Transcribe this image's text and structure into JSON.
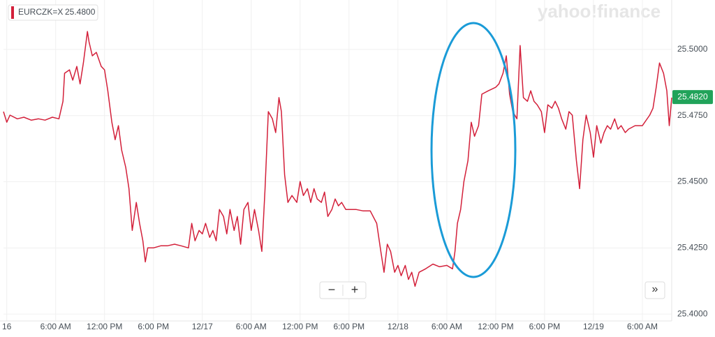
{
  "logo": "yahoo!finance",
  "controls": {
    "zoom_out": "−",
    "zoom_in": "+",
    "expand": "»"
  },
  "chart_data": {
    "type": "line",
    "series": [
      {
        "name": "EURCZK=X",
        "color": "#d3203a",
        "legend_value": {
          "value": 25.48,
          "label": "25.4800"
        },
        "values": [
          25.4765,
          25.4725,
          25.4752,
          25.4738,
          25.4744,
          25.4733,
          25.4738,
          25.4733,
          25.4744,
          25.4738,
          25.4804,
          25.491,
          25.4923,
          25.4884,
          25.4936,
          25.487,
          25.4949,
          25.5068,
          25.5029,
          25.4976,
          25.4989,
          25.4936,
          25.4923,
          25.4844,
          25.4725,
          25.4659,
          25.4712,
          25.462,
          25.4554,
          25.4474,
          25.4316,
          25.4422,
          25.4343,
          25.4277,
          25.4197,
          25.425,
          25.425,
          25.4258,
          25.4258,
          25.4264,
          25.4258,
          25.425,
          25.4343,
          25.4277,
          25.4316,
          25.4303,
          25.4343,
          25.429,
          25.4316,
          25.4277,
          25.4395,
          25.4369,
          25.4303,
          25.4395,
          25.4316,
          25.4369,
          25.4264,
          25.4395,
          25.4422,
          25.4316,
          25.4395,
          25.4316,
          25.4237,
          25.4474,
          25.4765,
          25.4738,
          25.4686,
          25.4818,
          25.4765,
          25.4527,
          25.4422,
          25.4448,
          25.4422,
          25.4501,
          25.4448,
          25.4474,
          25.4422,
          25.4474,
          25.4435,
          25.4422,
          25.4461,
          25.4369,
          25.4395,
          25.4435,
          25.4409,
          25.4422,
          25.4395,
          25.4395,
          25.4395,
          25.439,
          25.439,
          25.4343,
          25.4237,
          25.4158,
          25.4264,
          25.4237,
          25.4158,
          25.4184,
          25.4145,
          25.4184,
          25.4131,
          25.4158,
          25.4105,
          25.4158,
          25.4171,
          25.4189,
          25.4179,
          25.4184,
          25.4171,
          25.4237,
          25.4343,
          25.4395,
          25.4501,
          25.458,
          25.4725,
          25.4672,
          25.4712,
          25.4831,
          25.4844,
          25.4857,
          25.487,
          25.491,
          25.4976,
          25.4831,
          25.4765,
          25.4738,
          25.5015,
          25.4818,
          25.4804,
          25.4844,
          25.4804,
          25.4791,
          25.4765,
          25.4686,
          25.4791,
          25.4778,
          25.4804,
          25.4778,
          25.4738,
          25.4699,
          25.4765,
          25.4752,
          25.458,
          25.4474,
          25.4659,
          25.4752,
          25.4686,
          25.4593,
          25.4712,
          25.4646,
          25.4686,
          25.4712,
          25.4699,
          25.4738,
          25.4699,
          25.4712,
          25.4686,
          25.4699,
          25.4712,
          25.4712,
          25.4752,
          25.4778,
          25.4857,
          25.4949,
          25.491,
          25.4844,
          25.4712,
          25.4818
        ]
      }
    ],
    "x": [
      -0.4,
      0,
      0.4,
      1.3,
      2.1,
      3.0,
      3.9,
      4.7,
      5.6,
      6.4,
      6.9,
      7.1,
      7.7,
      8.1,
      8.6,
      9.0,
      9.4,
      9.9,
      10.1,
      10.5,
      11.0,
      11.6,
      12.0,
      12.4,
      12.9,
      13.3,
      13.7,
      14.1,
      14.6,
      15.0,
      15.4,
      15.9,
      16.3,
      16.7,
      17.0,
      17.3,
      18.0,
      18.9,
      19.7,
      20.6,
      21.4,
      22.3,
      22.7,
      23.1,
      23.6,
      24.0,
      24.4,
      24.9,
      25.3,
      25.7,
      26.1,
      26.6,
      27.0,
      27.4,
      27.9,
      28.3,
      28.7,
      29.1,
      29.6,
      30.0,
      30.4,
      30.9,
      31.3,
      31.7,
      32.1,
      32.6,
      33.0,
      33.4,
      33.7,
      34.1,
      34.5,
      35.0,
      35.6,
      36.0,
      36.4,
      36.9,
      37.3,
      37.7,
      38.1,
      38.6,
      39.0,
      39.4,
      39.9,
      40.3,
      40.7,
      41.1,
      41.6,
      42.0,
      42.9,
      43.7,
      44.6,
      45.4,
      45.9,
      46.3,
      46.7,
      47.1,
      47.6,
      48.0,
      48.4,
      48.9,
      49.3,
      49.7,
      50.1,
      50.6,
      51.4,
      52.3,
      53.1,
      54.0,
      54.7,
      55.0,
      55.3,
      55.7,
      56.1,
      56.6,
      57.0,
      57.4,
      57.9,
      58.3,
      59.1,
      60.0,
      60.4,
      60.9,
      61.3,
      61.7,
      62.1,
      62.6,
      63.0,
      63.4,
      63.9,
      64.3,
      64.7,
      65.1,
      65.6,
      66.0,
      66.4,
      66.9,
      67.3,
      67.7,
      68.1,
      68.6,
      69.0,
      69.4,
      69.9,
      70.3,
      70.7,
      71.1,
      71.6,
      72.0,
      72.4,
      72.9,
      73.3,
      73.7,
      74.1,
      74.6,
      75.0,
      75.4,
      75.9,
      76.3,
      77.1,
      78.0,
      78.9,
      79.3,
      79.7,
      80.1,
      80.6,
      81.0,
      81.3,
      81.6
    ],
    "xlim": [
      -0.4,
      81.6
    ],
    "xticks": [
      {
        "value": 0,
        "label": "16"
      },
      {
        "value": 6,
        "label": "6:00 AM"
      },
      {
        "value": 12,
        "label": "12:00 PM"
      },
      {
        "value": 18,
        "label": "6:00 PM"
      },
      {
        "value": 24,
        "label": "12/17"
      },
      {
        "value": 30,
        "label": "6:00 AM"
      },
      {
        "value": 36,
        "label": "12:00 PM"
      },
      {
        "value": 42,
        "label": "6:00 PM"
      },
      {
        "value": 48,
        "label": "12/18"
      },
      {
        "value": 54,
        "label": "6:00 AM"
      },
      {
        "value": 60,
        "label": "12:00 PM"
      },
      {
        "value": 66,
        "label": "6:00 PM"
      },
      {
        "value": 72,
        "label": "12/19"
      },
      {
        "value": 78,
        "label": "6:00 AM"
      }
    ],
    "ylim": [
      25.3974,
      25.5187
    ],
    "yticks": [
      {
        "value": 25.4,
        "label": "25.4000"
      },
      {
        "value": 25.425,
        "label": "25.4250"
      },
      {
        "value": 25.45,
        "label": "25.4500"
      },
      {
        "value": 25.475,
        "label": "25.4750"
      },
      {
        "value": 25.5,
        "label": "25.5000"
      }
    ],
    "price_tag": {
      "value": 25.482,
      "label": "25.4820"
    },
    "grid": true
  }
}
